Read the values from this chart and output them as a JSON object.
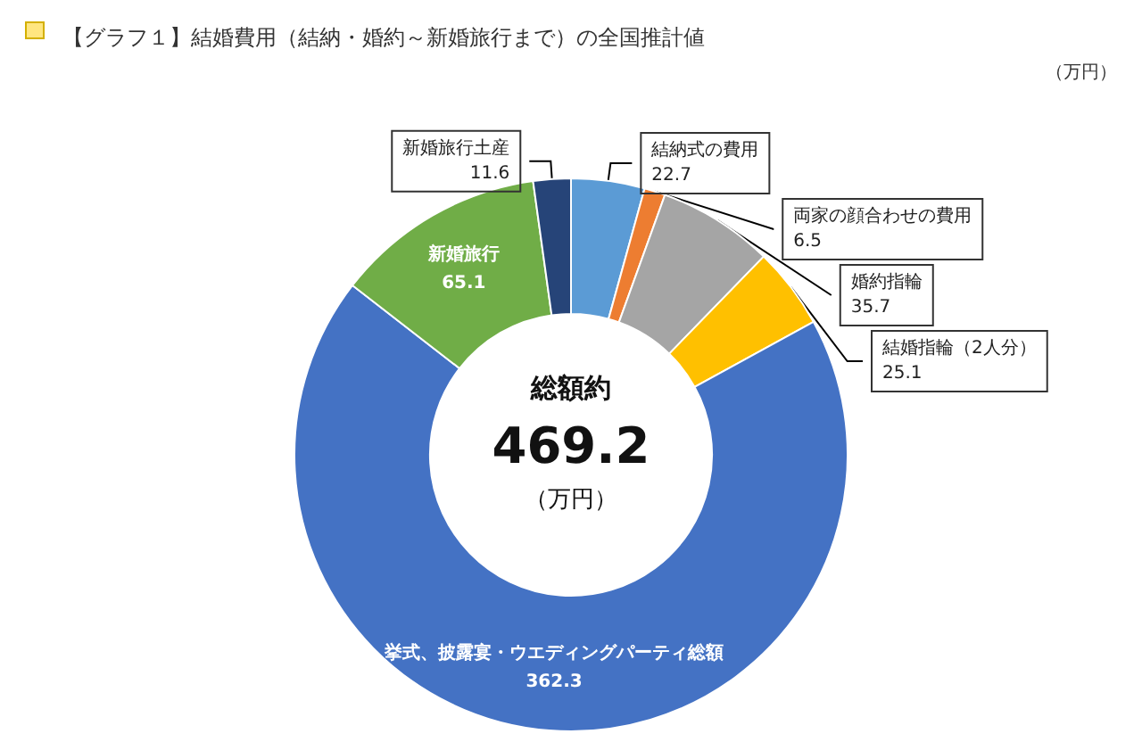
{
  "chart_data": {
    "type": "donut",
    "title": "【グラフ１】結婚費用（結納・婚約～新婚旅行まで）の全国推計値",
    "categories": [
      "結納式の費用",
      "両家の顔合わせの費用",
      "婚約指輪",
      "結婚指輪（2人分）",
      "挙式、披露宴・ウエディングパーティ総額",
      "新婚旅行",
      "新婚旅行土産"
    ],
    "values": [
      22.7,
      6.5,
      35.7,
      25.1,
      362.3,
      65.1,
      11.6
    ],
    "colors": [
      "#5b9bd5",
      "#ed7d31",
      "#a5a5a5",
      "#ffc000",
      "#4472c4",
      "#70ad47",
      "#264478"
    ],
    "data_labels": true,
    "legend": false,
    "annotations": [
      "（万円）",
      "総額約",
      "469.2",
      "（万円）"
    ]
  }
}
